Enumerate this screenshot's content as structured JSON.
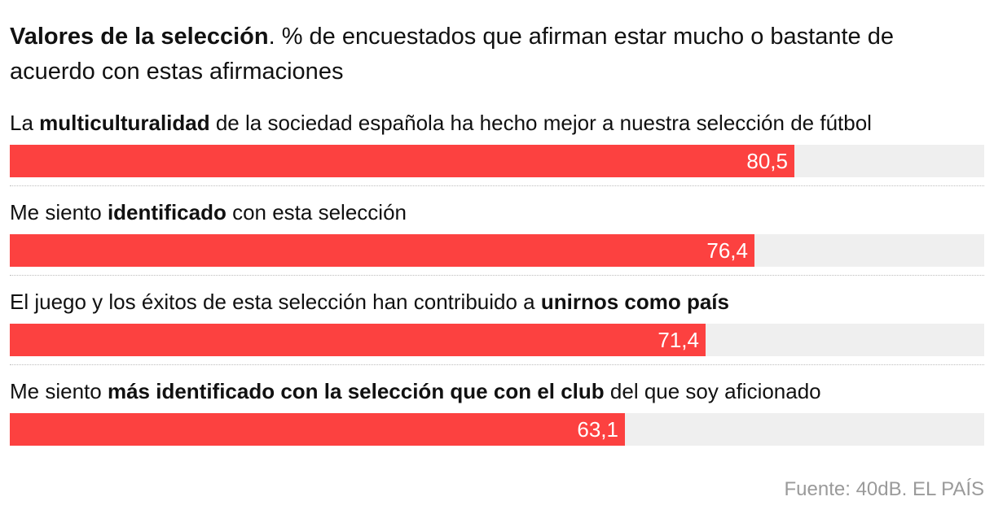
{
  "title": {
    "bold": "Valores de la selección",
    "rest": ". % de encuestados que afirman estar mucho o bastante de acuerdo con estas afirmaciones"
  },
  "source": "Fuente: 40dB. EL PAÍS",
  "colors": {
    "bar": "#fc4140",
    "track": "#efefef"
  },
  "chart_data": {
    "type": "bar",
    "orientation": "horizontal",
    "xlim": [
      0,
      100
    ],
    "categories": [
      "La multiculturalidad de la sociedad española ha hecho mejor a nuestra selección de fútbol",
      "Me siento identificado con esta selección",
      "El juego y los éxitos de esta selección han contribuido a unirnos como país",
      "Me siento más identificado con la selección que con el club del que soy aficionado"
    ],
    "values": [
      80.5,
      76.4,
      71.4,
      63.1
    ],
    "value_labels": [
      "80,5",
      "76,4",
      "71,4",
      "63,1"
    ],
    "label_parts": [
      {
        "pre": "La ",
        "bold": "multiculturalidad",
        "post": " de la sociedad española ha hecho mejor a nuestra selección de fútbol"
      },
      {
        "pre": "Me siento ",
        "bold": "identificado",
        "post": " con esta selección"
      },
      {
        "pre": "El juego y los éxitos de esta selección han contribuido a ",
        "bold": "unirnos como país",
        "post": ""
      },
      {
        "pre": "Me siento ",
        "bold": "más identificado con la selección que con el club",
        "post": " del que soy aficionado"
      }
    ]
  }
}
